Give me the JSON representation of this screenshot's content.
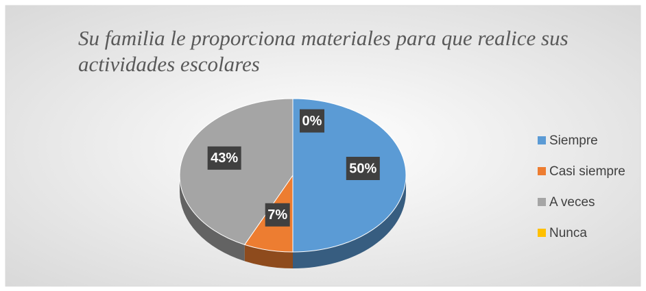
{
  "chart_data": {
    "type": "pie",
    "title": "Su familia le proporciona materiales para que realice sus actividades escolares",
    "title_lines": [
      "Su familia le proporciona materiales para que realice sus",
      "actividades escolares"
    ],
    "categories": [
      "Siempre",
      "Casi siempre",
      "A veces",
      "Nunca"
    ],
    "values": [
      50,
      7,
      43,
      0
    ],
    "value_labels": [
      "50%",
      "7%",
      "43%",
      "0%"
    ],
    "colors": [
      "#5b9bd5",
      "#ed7d31",
      "#a5a5a5",
      "#ffc000"
    ],
    "legend": "right"
  }
}
